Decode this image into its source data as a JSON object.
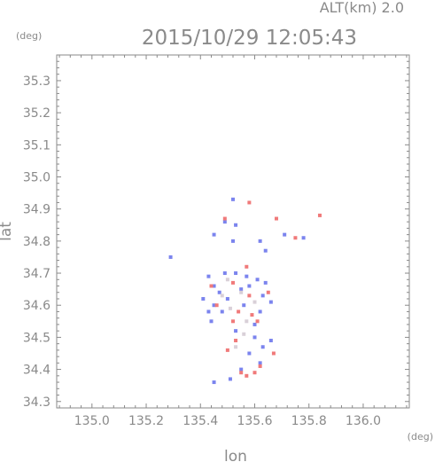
{
  "chart_data": {
    "type": "scatter",
    "title": "2015/10/29 12:05:43",
    "subtitle": "ALT(km)  2.0",
    "xlabel": "lon",
    "ylabel": "lat",
    "x_unit": "(deg)",
    "y_unit": "(deg)",
    "xlim": [
      134.87,
      136.17
    ],
    "ylim": [
      34.28,
      35.38
    ],
    "x_ticks": [
      "135.0",
      "135.2",
      "135.4",
      "135.6",
      "135.8",
      "136.0"
    ],
    "y_ticks": [
      "34.3",
      "34.4",
      "34.5",
      "34.6",
      "34.7",
      "34.8",
      "34.9",
      "35.0",
      "35.1",
      "35.2",
      "35.3"
    ],
    "grid": false,
    "colors": {
      "positive": "#f07a7a",
      "negative": "#7b84ee",
      "neutral": "#d9d0d8",
      "axis": "#8a8a8a"
    },
    "series": [
      {
        "kind": "negative",
        "points": [
          [
            135.29,
            34.75
          ],
          [
            135.52,
            34.93
          ],
          [
            135.49,
            34.86
          ],
          [
            135.53,
            34.85
          ],
          [
            135.45,
            34.82
          ],
          [
            135.52,
            34.8
          ],
          [
            135.62,
            34.8
          ],
          [
            135.64,
            34.77
          ],
          [
            135.71,
            34.82
          ],
          [
            135.78,
            34.81
          ],
          [
            135.43,
            34.69
          ],
          [
            135.45,
            34.66
          ],
          [
            135.49,
            34.7
          ],
          [
            135.53,
            34.7
          ],
          [
            135.57,
            34.69
          ],
          [
            135.61,
            34.68
          ],
          [
            135.64,
            34.67
          ],
          [
            135.47,
            34.64
          ],
          [
            135.55,
            34.65
          ],
          [
            135.63,
            34.63
          ],
          [
            135.45,
            34.6
          ],
          [
            135.48,
            34.58
          ],
          [
            135.56,
            34.6
          ],
          [
            135.62,
            34.58
          ],
          [
            135.66,
            34.61
          ],
          [
            135.41,
            34.62
          ],
          [
            135.44,
            34.55
          ],
          [
            135.6,
            34.5
          ],
          [
            135.63,
            34.47
          ],
          [
            135.66,
            34.49
          ],
          [
            135.58,
            34.45
          ],
          [
            135.62,
            34.42
          ],
          [
            135.55,
            34.4
          ],
          [
            135.51,
            34.37
          ],
          [
            135.45,
            34.36
          ],
          [
            135.6,
            34.54
          ],
          [
            135.53,
            34.52
          ],
          [
            135.5,
            34.62
          ],
          [
            135.58,
            34.66
          ],
          [
            135.43,
            34.58
          ]
        ]
      },
      {
        "kind": "positive",
        "points": [
          [
            135.84,
            34.88
          ],
          [
            135.68,
            34.87
          ],
          [
            135.49,
            34.87
          ],
          [
            135.58,
            34.92
          ],
          [
            135.75,
            34.81
          ],
          [
            135.44,
            34.66
          ],
          [
            135.52,
            34.67
          ],
          [
            135.58,
            34.63
          ],
          [
            135.54,
            34.58
          ],
          [
            135.59,
            34.57
          ],
          [
            135.61,
            34.55
          ],
          [
            135.52,
            34.55
          ],
          [
            135.46,
            34.6
          ],
          [
            135.65,
            34.64
          ],
          [
            135.57,
            34.72
          ],
          [
            135.6,
            34.39
          ],
          [
            135.57,
            34.38
          ],
          [
            135.55,
            34.39
          ],
          [
            135.62,
            34.41
          ],
          [
            135.67,
            34.45
          ],
          [
            135.53,
            34.49
          ],
          [
            135.5,
            34.46
          ]
        ]
      },
      {
        "kind": "neutral",
        "points": [
          [
            135.5,
            34.68
          ],
          [
            135.55,
            34.64
          ],
          [
            135.51,
            34.59
          ],
          [
            135.57,
            34.55
          ],
          [
            135.53,
            34.47
          ],
          [
            135.56,
            34.51
          ],
          [
            135.48,
            34.63
          ],
          [
            135.6,
            34.61
          ]
        ]
      }
    ]
  }
}
